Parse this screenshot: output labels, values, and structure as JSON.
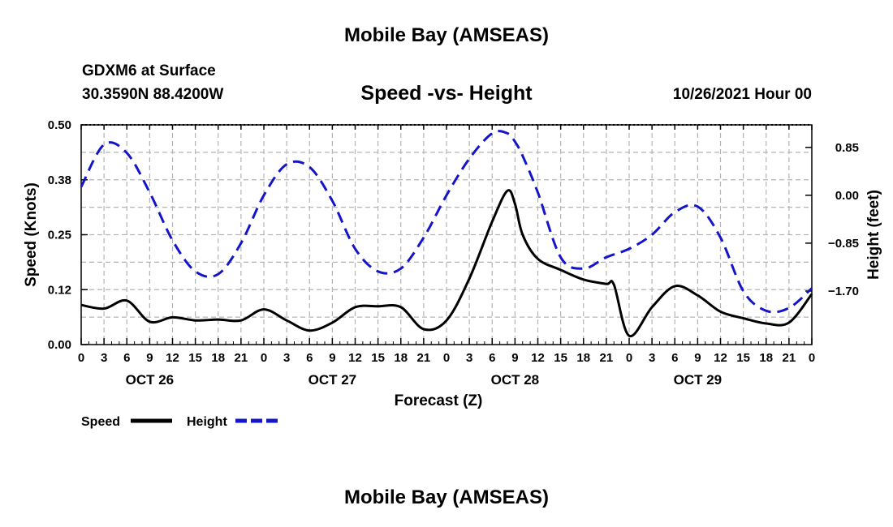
{
  "page": {
    "title_top": "Mobile Bay (AMSEAS)",
    "title_bottom": "Mobile Bay (AMSEAS)",
    "station": "GDXM6 at Surface",
    "coords": "30.3590N  88.4200W",
    "subtitle": "Speed -vs- Height",
    "datetime": "10/26/2021 Hour 00"
  },
  "colors": {
    "speed": "#000000",
    "height": "#1414c8",
    "grid": "#b4b4b4"
  },
  "chart_data": {
    "type": "line",
    "title": "Speed -vs- Height",
    "xlabel": "Forecast (Z)",
    "ylabel": "Speed (Knots)",
    "y2label": "Height (feet)",
    "x_range_hours": [
      0,
      96
    ],
    "ylim": [
      0.0,
      0.5
    ],
    "y2lim": [
      -2.65,
      1.25
    ],
    "grid": true,
    "legend_position": "bottom-left",
    "x_ticks": [
      {
        "h": 0,
        "label": "0"
      },
      {
        "h": 3,
        "label": "3"
      },
      {
        "h": 6,
        "label": "6"
      },
      {
        "h": 9,
        "label": "9"
      },
      {
        "h": 12,
        "label": "12"
      },
      {
        "h": 15,
        "label": "15"
      },
      {
        "h": 18,
        "label": "18"
      },
      {
        "h": 21,
        "label": "21"
      },
      {
        "h": 24,
        "label": "0"
      },
      {
        "h": 27,
        "label": "3"
      },
      {
        "h": 30,
        "label": "6"
      },
      {
        "h": 33,
        "label": "9"
      },
      {
        "h": 36,
        "label": "12"
      },
      {
        "h": 39,
        "label": "15"
      },
      {
        "h": 42,
        "label": "18"
      },
      {
        "h": 45,
        "label": "21"
      },
      {
        "h": 48,
        "label": "0"
      },
      {
        "h": 51,
        "label": "3"
      },
      {
        "h": 54,
        "label": "6"
      },
      {
        "h": 57,
        "label": "9"
      },
      {
        "h": 60,
        "label": "12"
      },
      {
        "h": 63,
        "label": "15"
      },
      {
        "h": 66,
        "label": "18"
      },
      {
        "h": 69,
        "label": "21"
      },
      {
        "h": 72,
        "label": "0"
      },
      {
        "h": 75,
        "label": "3"
      },
      {
        "h": 78,
        "label": "6"
      },
      {
        "h": 81,
        "label": "9"
      },
      {
        "h": 84,
        "label": "12"
      },
      {
        "h": 87,
        "label": "15"
      },
      {
        "h": 90,
        "label": "18"
      },
      {
        "h": 93,
        "label": "21"
      },
      {
        "h": 96,
        "label": "0"
      }
    ],
    "day_labels": [
      {
        "h": 9,
        "label": "OCT 26"
      },
      {
        "h": 33,
        "label": "OCT 27"
      },
      {
        "h": 57,
        "label": "OCT 28"
      },
      {
        "h": 81,
        "label": "OCT 29"
      }
    ],
    "y_ticks": [
      {
        "value": 0.0,
        "label": "0.00"
      },
      {
        "value": 0.125,
        "label": "0.12"
      },
      {
        "value": 0.25,
        "label": "0.25"
      },
      {
        "value": 0.375,
        "label": "0.38"
      },
      {
        "value": 0.5,
        "label": "0.50"
      }
    ],
    "y2_ticks": [
      {
        "value": 0.85,
        "label": "0.85"
      },
      {
        "value": 0.0,
        "label": "0.00"
      },
      {
        "value": -0.85,
        "label": "−0.85"
      },
      {
        "value": -1.7,
        "label": "−1.70"
      }
    ],
    "series": [
      {
        "name": "Speed",
        "axis": "left",
        "style": "solid",
        "x": [
          0,
          3,
          6,
          9,
          12,
          15,
          18,
          21,
          24,
          27,
          30,
          33,
          36,
          39,
          42,
          45,
          48,
          51,
          54,
          56,
          57,
          58,
          60,
          63,
          66,
          69,
          70,
          72,
          75,
          78,
          81,
          84,
          87,
          90,
          93,
          96
        ],
        "values": [
          0.09,
          0.082,
          0.1,
          0.052,
          0.062,
          0.055,
          0.057,
          0.055,
          0.08,
          0.055,
          0.032,
          0.05,
          0.085,
          0.087,
          0.085,
          0.035,
          0.055,
          0.15,
          0.28,
          0.35,
          0.32,
          0.25,
          0.195,
          0.17,
          0.148,
          0.138,
          0.136,
          0.02,
          0.085,
          0.133,
          0.112,
          0.075,
          0.06,
          0.048,
          0.05,
          0.115
        ]
      },
      {
        "name": "Height",
        "axis": "right",
        "style": "dashed",
        "x": [
          0,
          3,
          6,
          9,
          12,
          15,
          18,
          21,
          24,
          27,
          30,
          33,
          36,
          39,
          42,
          45,
          48,
          51,
          54,
          56,
          57,
          58,
          60,
          63,
          66,
          69,
          72,
          75,
          78,
          81,
          84,
          87,
          90,
          93,
          96
        ],
        "values": [
          0.15,
          0.9,
          0.75,
          0.05,
          -0.8,
          -1.35,
          -1.4,
          -0.85,
          0.0,
          0.55,
          0.5,
          -0.1,
          -0.95,
          -1.35,
          -1.3,
          -0.75,
          0.0,
          0.65,
          1.1,
          1.1,
          0.95,
          0.7,
          0.05,
          -1.1,
          -1.3,
          -1.1,
          -0.95,
          -0.7,
          -0.3,
          -0.2,
          -0.75,
          -1.7,
          -2.05,
          -2.0,
          -1.65
        ]
      }
    ]
  }
}
